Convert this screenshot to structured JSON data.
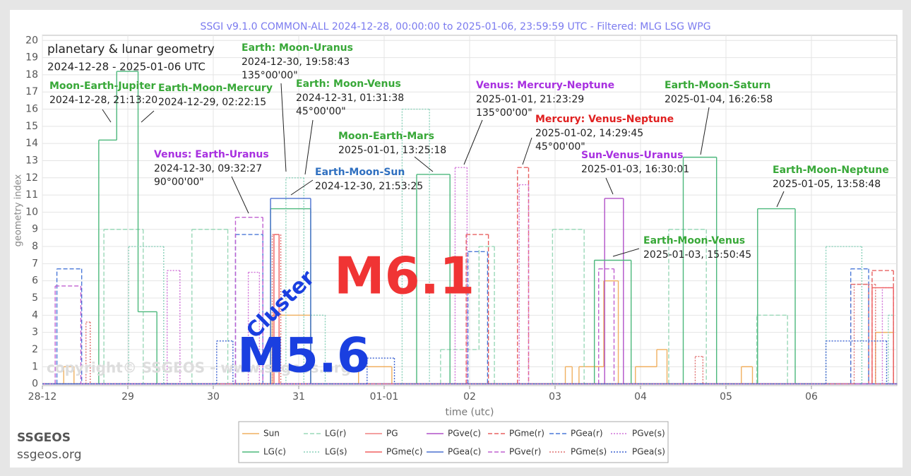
{
  "header": "SSGI v9.1.0 COMMON-ALL 2024-12-28, 00:00:00 to 2025-01-06, 23:59:59 UTC - Filtered: MLG LSG WPG",
  "footer": {
    "brand": "SSGEOS",
    "site": "ssgeos.org"
  },
  "overlay": {
    "big_label": "M6.1",
    "small_label": "M5.6",
    "cluster": "Cluster",
    "copyright": "copyright© SSGEOS - www.ssgeos.org"
  },
  "chart_data": {
    "type": "line",
    "step": "post",
    "title": "planetary & lunar geometry",
    "subtitle": "2024-12-28 - 2025-01-06 UTC",
    "xlabel": "time (utc)",
    "ylabel": "geometry index",
    "grid": true,
    "xlim": [
      0,
      10
    ],
    "xticks": [
      {
        "value": 0,
        "label": "28-12"
      },
      {
        "value": 1,
        "label": "29"
      },
      {
        "value": 2,
        "label": "30"
      },
      {
        "value": 3,
        "label": "31"
      },
      {
        "value": 4,
        "label": "01-01"
      },
      {
        "value": 5,
        "label": "02"
      },
      {
        "value": 6,
        "label": "03"
      },
      {
        "value": 7,
        "label": "04"
      },
      {
        "value": 8,
        "label": "05"
      },
      {
        "value": 9,
        "label": "06"
      }
    ],
    "ylim": [
      -0.1,
      20.3
    ],
    "yticks": [
      0,
      1,
      2,
      3,
      4,
      5,
      6,
      7,
      8,
      9,
      10,
      11,
      12,
      13,
      14,
      15,
      16,
      17,
      18,
      19,
      20
    ],
    "series": [
      {
        "name": "Sun",
        "color": "#f0b060",
        "dash": "solid",
        "x": [
          0,
          0.25,
          0.37,
          2.69,
          3.14,
          3.7,
          4.09,
          6.12,
          6.2,
          6.28,
          6.57,
          6.74,
          6.94,
          7.19,
          7.31,
          8.18,
          8.31,
          9.75,
          9.96,
          10
        ],
        "values": [
          0,
          1,
          0,
          4,
          0,
          1,
          0,
          1,
          0,
          1,
          6,
          0,
          1,
          2,
          0,
          1,
          0,
          3,
          0,
          0
        ]
      },
      {
        "name": "LG(r)",
        "color": "#9ad8b8",
        "dash": "dashed",
        "x": [
          0,
          0.72,
          1.18,
          1.75,
          2.17,
          4.66,
          5.11,
          5.29,
          5.97,
          6.34,
          7.33,
          7.77,
          8.36,
          8.72,
          10
        ],
        "values": [
          0,
          9,
          0,
          9,
          0,
          2,
          8,
          0,
          9,
          0,
          9,
          0,
          4,
          0,
          0
        ]
      },
      {
        "name": "PG",
        "color": "#f08080",
        "dash": "solid",
        "x": [
          0,
          10
        ],
        "values": [
          0,
          0
        ]
      },
      {
        "name": "PGve(c)",
        "color": "#b050c8",
        "dash": "solid",
        "x": [
          0,
          6.58,
          6.8,
          10
        ],
        "values": [
          0,
          10.8,
          0,
          0
        ]
      },
      {
        "name": "PGme(r)",
        "color": "#e86060",
        "dash": "dashed",
        "x": [
          0,
          4.96,
          5.22,
          5.56,
          5.69,
          9.46,
          9.67,
          9.71,
          9.96,
          10
        ],
        "values": [
          0,
          8.7,
          0,
          12.6,
          0,
          5.8,
          0,
          6.6,
          0,
          0
        ]
      },
      {
        "name": "PGea(r)",
        "color": "#4a78d8",
        "dash": "dashed",
        "x": [
          0,
          0.17,
          0.46,
          2.26,
          2.58,
          4.98,
          5.21,
          9.46,
          9.67,
          10
        ],
        "values": [
          0,
          6.7,
          0,
          8.7,
          0,
          7.7,
          0,
          6.7,
          0,
          0
        ]
      },
      {
        "name": "PGve(s)",
        "color": "#d070d8",
        "dash": "dotted",
        "x": [
          0,
          1.46,
          1.61,
          2.41,
          2.54,
          4.83,
          4.97,
          5.58,
          5.69,
          9.83,
          9.96,
          10
        ],
        "values": [
          0,
          6.6,
          0,
          6.5,
          0,
          12.6,
          0,
          11.6,
          0,
          5.6,
          0,
          0
        ]
      },
      {
        "name": "LG(c)",
        "color": "#4cb87c",
        "dash": "solid",
        "x": [
          0,
          0.66,
          0.87,
          1.12,
          1.34,
          2.67,
          3.14,
          4.38,
          4.77,
          6.46,
          6.89,
          7.5,
          7.89,
          8.37,
          8.81,
          10
        ],
        "values": [
          0,
          14.2,
          18.2,
          4.2,
          0,
          10.2,
          0,
          12.2,
          0,
          7.2,
          0,
          13.2,
          0,
          10.2,
          0,
          0
        ]
      },
      {
        "name": "LG(s)",
        "color": "#88d0b8",
        "dash": "dotted",
        "x": [
          0,
          1.01,
          1.42,
          2.85,
          3.06,
          3.14,
          3.31,
          4.21,
          4.53,
          9.17,
          9.59,
          9.9,
          9.96,
          10
        ],
        "values": [
          0,
          8,
          0,
          12,
          0,
          4,
          0,
          16,
          0,
          8,
          0,
          4,
          0,
          0
        ]
      },
      {
        "name": "PGme(c)",
        "color": "#f06060",
        "dash": "solid",
        "x": [
          0,
          2.71,
          2.77,
          9.71,
          9.96,
          10
        ],
        "values": [
          0,
          8.7,
          0,
          5.6,
          0,
          0
        ]
      },
      {
        "name": "PGea(c)",
        "color": "#4a70d0",
        "dash": "solid",
        "x": [
          0,
          2.67,
          3.14,
          10
        ],
        "values": [
          0,
          10.8,
          0,
          0
        ]
      },
      {
        "name": "PGve(r)",
        "color": "#c060d0",
        "dash": "dashed",
        "x": [
          0,
          0.15,
          0.45,
          2.26,
          2.58,
          6.51,
          6.69,
          10
        ],
        "values": [
          0,
          5.7,
          0,
          9.7,
          0,
          6.7,
          0,
          0
        ]
      },
      {
        "name": "PGme(s)",
        "color": "#e07070",
        "dash": "dotted",
        "x": [
          0,
          0.51,
          0.56,
          2.69,
          2.79,
          7.64,
          7.73,
          9.5,
          9.75,
          10
        ],
        "values": [
          0,
          3.6,
          0,
          8.7,
          0,
          1.6,
          0,
          5.8,
          0,
          0
        ]
      },
      {
        "name": "PGea(s)",
        "color": "#3a60d0",
        "dash": "dotted",
        "x": [
          0,
          2.04,
          2.23,
          3.8,
          4.12,
          9.17,
          9.88,
          10
        ],
        "values": [
          0,
          2.5,
          0,
          1.5,
          0,
          2.5,
          0,
          0
        ]
      }
    ],
    "annotations": [
      {
        "title": "Moon-Earth-Jupiter",
        "color": "#38a838",
        "date": "2024-12-28, 21:13:20"
      },
      {
        "title": "Earth-Moon-Mercury",
        "color": "#38a838",
        "date": "2024-12-29, 02:22:15"
      },
      {
        "title": "Earth: Moon-Uranus",
        "color": "#38a838",
        "date": "2024-12-30, 19:58:43",
        "angle": "135°00'00\""
      },
      {
        "title": "Earth: Moon-Venus",
        "color": "#38a838",
        "date": "2024-12-31, 01:31:38",
        "angle": "45°00'00\""
      },
      {
        "title": "Venus: Earth-Uranus",
        "color": "#a830e0",
        "date": "2024-12-30, 09:32:27",
        "angle": "90°00'00\""
      },
      {
        "title": "Earth-Moon-Sun",
        "color": "#3070c0",
        "date": "2024-12-30, 21:53:25"
      },
      {
        "title": "Moon-Earth-Mars",
        "color": "#38a838",
        "date": "2025-01-01, 13:25:18"
      },
      {
        "title": "Venus: Mercury-Neptune",
        "color": "#a830e0",
        "date": "2025-01-01, 21:23:29",
        "angle": "135°00'00\""
      },
      {
        "title": "Mercury: Venus-Neptune",
        "color": "#e02020",
        "date": "2025-01-02, 14:29:45",
        "angle": "45°00'00\""
      },
      {
        "title": "Sun-Venus-Uranus",
        "color": "#a830e0",
        "date": "2025-01-03, 16:30:01"
      },
      {
        "title": "Earth-Moon-Venus",
        "color": "#38a838",
        "date": "2025-01-03, 15:50:45"
      },
      {
        "title": "Earth-Moon-Saturn",
        "color": "#38a838",
        "date": "2025-01-04, 16:26:58"
      },
      {
        "title": "Earth-Moon-Neptune",
        "color": "#38a838",
        "date": "2025-01-05, 13:58:48"
      }
    ]
  }
}
